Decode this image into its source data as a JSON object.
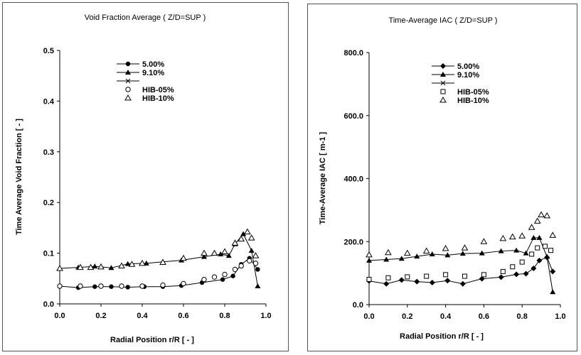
{
  "chart_data": [
    {
      "type": "line",
      "title": "Void Fraction Average ( Z/D=SUP )",
      "xlabel": "Radial Position r/R [ - ]",
      "ylabel": "Time Average Void Fraction [ - ]",
      "xlim": [
        0.0,
        1.0
      ],
      "ylim": [
        0.0,
        0.5
      ],
      "xticks": [
        "0.0",
        "0.2",
        "0.4",
        "0.6",
        "0.8",
        "1.0"
      ],
      "yticks": [
        "0.0",
        "0.1",
        "0.2",
        "0.3",
        "0.4",
        "0.5"
      ],
      "legend_position": "top-left",
      "series": [
        {
          "name": "5.00%",
          "marker": "filled-circle",
          "line": true,
          "x": [
            0.0,
            0.09,
            0.17,
            0.25,
            0.33,
            0.41,
            0.5,
            0.59,
            0.69,
            0.79,
            0.84,
            0.88,
            0.92,
            0.96
          ],
          "y": [
            0.035,
            0.032,
            0.034,
            0.034,
            0.033,
            0.034,
            0.034,
            0.036,
            0.042,
            0.048,
            0.055,
            0.078,
            0.09,
            0.068
          ]
        },
        {
          "name": "9.10%",
          "marker": "filled-triangle",
          "line": true,
          "x": [
            0.0,
            0.09,
            0.17,
            0.25,
            0.33,
            0.42,
            0.5,
            0.59,
            0.7,
            0.78,
            0.82,
            0.85,
            0.89,
            0.93,
            0.96
          ],
          "y": [
            0.07,
            0.072,
            0.074,
            0.071,
            0.079,
            0.08,
            0.083,
            0.086,
            0.093,
            0.098,
            0.095,
            0.118,
            0.138,
            0.105,
            0.035
          ]
        },
        {
          "name": "",
          "marker": "x",
          "line": true,
          "x": [],
          "y": []
        },
        {
          "name": "HIB-05%",
          "marker": "open-circle",
          "line": false,
          "x": [
            0.0,
            0.1,
            0.2,
            0.3,
            0.4,
            0.5,
            0.6,
            0.7,
            0.75,
            0.8,
            0.85,
            0.88,
            0.92,
            0.95
          ],
          "y": [
            0.035,
            0.035,
            0.035,
            0.035,
            0.035,
            0.037,
            0.04,
            0.048,
            0.053,
            0.058,
            0.068,
            0.075,
            0.085,
            0.08
          ]
        },
        {
          "name": "HIB-10%",
          "marker": "open-triangle",
          "line": false,
          "x": [
            0.0,
            0.1,
            0.15,
            0.2,
            0.3,
            0.35,
            0.4,
            0.5,
            0.6,
            0.7,
            0.75,
            0.8,
            0.85,
            0.88,
            0.91,
            0.93,
            0.95
          ],
          "y": [
            0.07,
            0.072,
            0.072,
            0.073,
            0.075,
            0.078,
            0.08,
            0.082,
            0.09,
            0.1,
            0.1,
            0.103,
            0.12,
            0.128,
            0.142,
            0.13,
            0.095
          ]
        }
      ]
    },
    {
      "type": "line",
      "title": "Time-Average IAC ( Z/D=SUP )",
      "xlabel": "Radial Position r/R [ - ]",
      "ylabel": "Time-Average IAC [ m-1 ]",
      "xlim": [
        0.0,
        1.0
      ],
      "ylim": [
        0.0,
        800.0
      ],
      "xticks": [
        "0.0",
        "0.2",
        "0.4",
        "0.6",
        "0.8",
        "1.0"
      ],
      "yticks": [
        "0.0",
        "200.0",
        "400.0",
        "600.0",
        "800.0"
      ],
      "legend_position": "top-left",
      "series": [
        {
          "name": "5.00%",
          "marker": "filled-diamond",
          "line": true,
          "x": [
            0.0,
            0.09,
            0.17,
            0.25,
            0.33,
            0.41,
            0.49,
            0.59,
            0.69,
            0.77,
            0.82,
            0.86,
            0.89,
            0.93,
            0.96
          ],
          "y": [
            75,
            66,
            78,
            73,
            70,
            76,
            66,
            82,
            87,
            96,
            98,
            115,
            140,
            150,
            105
          ]
        },
        {
          "name": "9.10%",
          "marker": "filled-triangle",
          "line": true,
          "x": [
            0.0,
            0.09,
            0.17,
            0.25,
            0.33,
            0.41,
            0.49,
            0.59,
            0.69,
            0.77,
            0.82,
            0.86,
            0.89,
            0.93,
            0.96
          ],
          "y": [
            140,
            143,
            146,
            153,
            160,
            157,
            162,
            163,
            170,
            172,
            163,
            212,
            212,
            152,
            40
          ]
        },
        {
          "name": "",
          "marker": "x",
          "line": true,
          "x": [],
          "y": []
        },
        {
          "name": "HIB-05%",
          "marker": "open-square",
          "line": false,
          "x": [
            0.0,
            0.1,
            0.2,
            0.3,
            0.4,
            0.5,
            0.6,
            0.7,
            0.75,
            0.8,
            0.85,
            0.88,
            0.92,
            0.95
          ],
          "y": [
            80,
            85,
            88,
            90,
            95,
            90,
            95,
            105,
            120,
            135,
            160,
            180,
            185,
            172
          ]
        },
        {
          "name": "HIB-10%",
          "marker": "open-triangle",
          "line": false,
          "x": [
            0.0,
            0.1,
            0.2,
            0.3,
            0.4,
            0.5,
            0.6,
            0.7,
            0.75,
            0.8,
            0.85,
            0.88,
            0.9,
            0.93,
            0.96
          ],
          "y": [
            158,
            165,
            163,
            170,
            178,
            180,
            200,
            210,
            215,
            218,
            245,
            265,
            285,
            282,
            220
          ]
        }
      ]
    }
  ]
}
